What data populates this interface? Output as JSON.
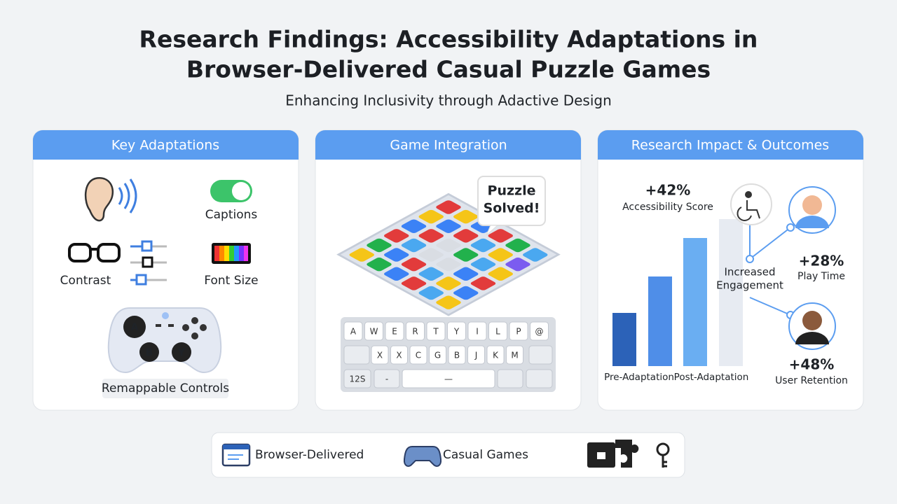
{
  "header": {
    "title_line1": "Research Findings: Accessibility Adaptations in",
    "title_line2": "Browser-Delivered Casual Puzzle Games",
    "subtitle": "Enhancing Inclusivity through Adactive Design"
  },
  "panels": [
    {
      "title": "Key Adaptations",
      "items": [
        "Captions",
        "Contrast",
        "Font Size",
        "Remappable Controls"
      ]
    },
    {
      "title": "Game Integration",
      "bubble": [
        "Puzzle",
        "Solved!"
      ],
      "keyboard": {
        "row1": [
          "A",
          "W",
          "E",
          "R",
          "T",
          "Y",
          "I",
          "L",
          "P",
          "@"
        ],
        "row2": [
          "X",
          "X",
          "C",
          "G",
          "B",
          "J",
          "K",
          "M"
        ],
        "row3": [
          "12S",
          "-",
          "—"
        ]
      }
    },
    {
      "title": "Research Impact & Outcomes",
      "stats": [
        {
          "value": "+42%",
          "label": "Accessibility Score"
        },
        {
          "value": "+28%",
          "label": "Play Time"
        },
        {
          "value": "+48%",
          "label": "User Retention"
        }
      ],
      "center": [
        "Increased",
        "Engagement"
      ],
      "bar_labels": [
        "Pre-Adaptation",
        "Post-Adaptation"
      ]
    }
  ],
  "footer": {
    "items": [
      "Browser-Delivered",
      "Casual Games"
    ]
  }
}
